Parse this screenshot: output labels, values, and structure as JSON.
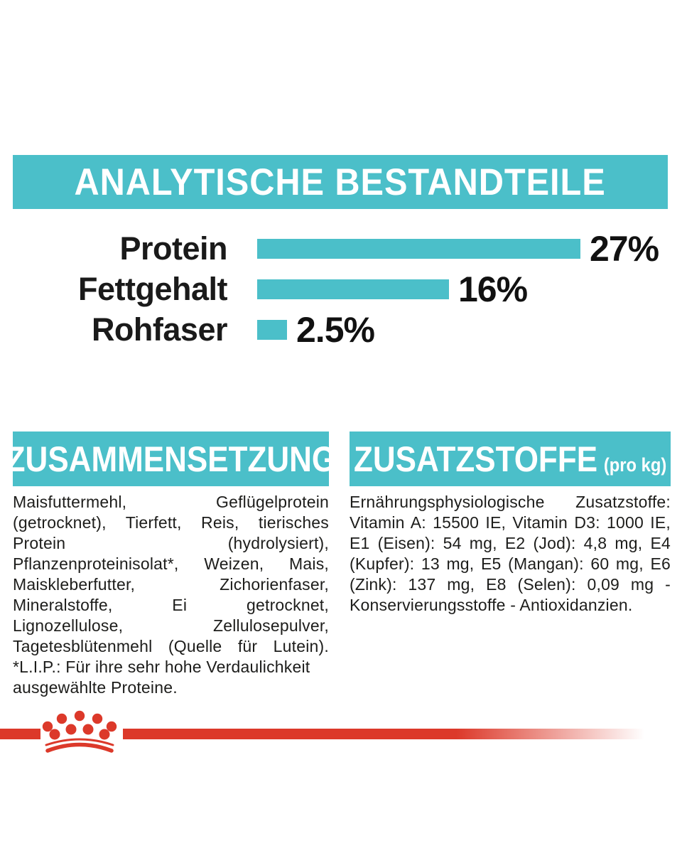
{
  "colors": {
    "teal": "#4BBFC9",
    "red": "#DC392A",
    "text": "#1d1d1b",
    "background": "#ffffff"
  },
  "analytics_banner": {
    "title": "ANALYTISCHE BESTANDTEILE"
  },
  "chart_data": {
    "type": "bar",
    "orientation": "horizontal",
    "title": "ANALYTISCHE BESTANDTEILE",
    "categories": [
      "Protein",
      "Fettgehalt",
      "Rohfaser"
    ],
    "values": [
      27,
      16,
      2.5
    ],
    "value_labels": [
      "27%",
      "16%",
      "2.5%"
    ],
    "xlim": [
      0,
      27
    ],
    "bar_color": "#4BBFC9",
    "grid": "off",
    "legend": "none"
  },
  "composition": {
    "title": "ZUSAMMENSETZUNG",
    "body": "Maisfuttermehl, Geflügelprotein (getrocknet), Tierfett, Reis, tierisches Protein (hydrolysiert), Pflanzenproteinisolat*, Weizen, Mais, Maiskleberfutter, Zichorienfaser, Mineralstoffe, Ei getrocknet, Lignozellulose, Zellulosepulver, Tagetesblütenmehl (Quelle für Lutein).",
    "footnote": "*L.I.P.: Für ihre sehr hohe Verdaulichkeit ausgewählte Proteine."
  },
  "additives": {
    "title": "ZUSATZSTOFFE",
    "title_suffix": "(pro kg)",
    "body": "Ernährungsphysiologische Zusatzstoffe: Vitamin A: 15500 IE, Vitamin D3: 1000 IE, E1 (Eisen): 54 mg, E2 (Jod): 4,8 mg, E4 (Kupfer): 13 mg, E5 (Mangan): 60 mg, E6 (Zink): 137 mg, E8 (Selen): 0,09 mg - Konservierungsstoffe - Antioxidanzien."
  },
  "icons": {
    "brand_logo": "royal-canin-crown-logo"
  }
}
